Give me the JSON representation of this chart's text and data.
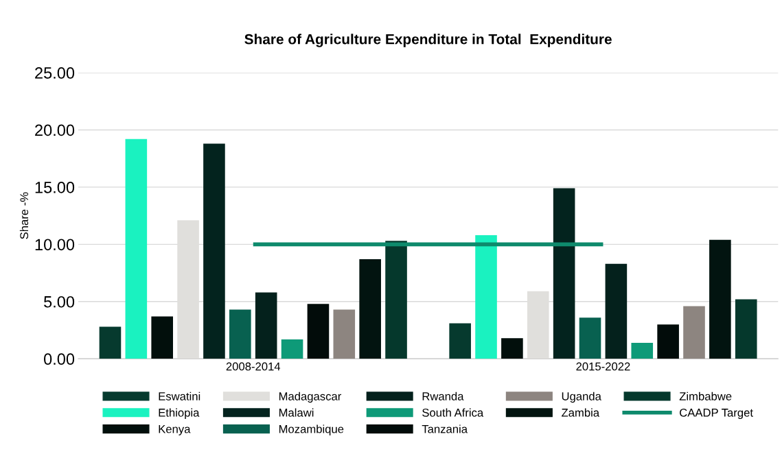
{
  "chart_data": {
    "type": "bar",
    "title": "Share of Agriculture Expenditure in Total  Expenditure",
    "ylabel": "Share -%",
    "categories": [
      "2008-2014",
      "2015-2022"
    ],
    "series": [
      {
        "name": "Eswatini",
        "color": "#063a2e",
        "values": [
          2.8,
          3.1
        ]
      },
      {
        "name": "Ethiopia",
        "color": "#1af2c0",
        "values": [
          19.2,
          10.8
        ]
      },
      {
        "name": "Kenya",
        "color": "#020f0c",
        "values": [
          3.7,
          1.8
        ]
      },
      {
        "name": "Madagascar",
        "color": "#e0dfdc",
        "values": [
          12.1,
          5.9
        ]
      },
      {
        "name": "Malawi",
        "color": "#03231e",
        "values": [
          18.8,
          14.9
        ]
      },
      {
        "name": "Mozambique",
        "color": "#086150",
        "values": [
          4.3,
          3.6
        ]
      },
      {
        "name": "Rwanda",
        "color": "#04211c",
        "values": [
          5.8,
          8.3
        ]
      },
      {
        "name": "South Africa",
        "color": "#0e9a78",
        "values": [
          1.7,
          1.4
        ]
      },
      {
        "name": "Tanzania",
        "color": "#020c0a",
        "values": [
          4.8,
          3.0
        ]
      },
      {
        "name": "Uganda",
        "color": "#8d8580",
        "values": [
          4.3,
          4.6
        ]
      },
      {
        "name": "Zambia",
        "color": "#021410",
        "values": [
          8.7,
          10.4
        ]
      },
      {
        "name": "Zimbabwe",
        "color": "#05382c",
        "values": [
          10.3,
          5.2
        ]
      }
    ],
    "ref_lines": [
      {
        "axis": "y",
        "value": 10,
        "label": "CAADP Target",
        "color": "#0e8a6c"
      }
    ],
    "ylim": [
      0,
      25
    ],
    "yticks": [
      {
        "value": 0,
        "label": "0.00"
      },
      {
        "value": 5,
        "label": "5.00"
      },
      {
        "value": 10,
        "label": "10.00"
      },
      {
        "value": 15,
        "label": "15.00"
      },
      {
        "value": 20,
        "label": "20.00"
      },
      {
        "value": 25,
        "label": "25.00"
      }
    ],
    "grid": "y",
    "legend": "bottom"
  }
}
